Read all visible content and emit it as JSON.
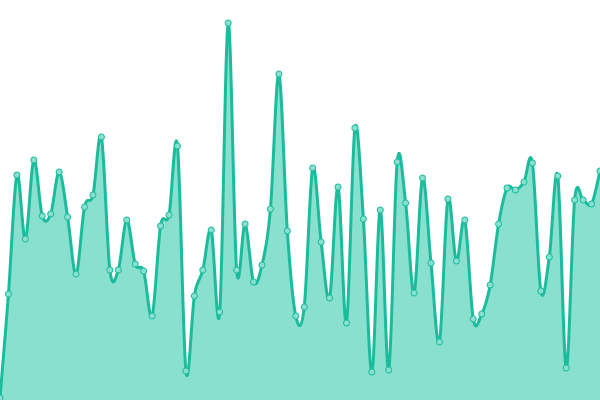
{
  "chart_data": {
    "type": "area",
    "title": "",
    "xlabel": "",
    "ylabel": "",
    "ylim": [
      0,
      400
    ],
    "grid": false,
    "legend": "none",
    "smooth": true,
    "show_points": true,
    "colors": {
      "line": "#1abc9c",
      "fill": "#8ae0cf",
      "point_fill": "#8ae0cf"
    },
    "series": [
      {
        "values": [
          2,
          106,
          225,
          161,
          240,
          184,
          186,
          228,
          183,
          126,
          193,
          205,
          263,
          130,
          130,
          180,
          136,
          129,
          84,
          174,
          185,
          254,
          29,
          104,
          130,
          170,
          88,
          377,
          130,
          176,
          118,
          135,
          191,
          326,
          169,
          84,
          93,
          232,
          158,
          102,
          213,
          77,
          272,
          181,
          28,
          190,
          30,
          238,
          197,
          107,
          222,
          137,
          58,
          201,
          139,
          180,
          81,
          86,
          115,
          176,
          212,
          210,
          218,
          237,
          109,
          143,
          224,
          32,
          200,
          200,
          196,
          229
        ]
      }
    ]
  }
}
